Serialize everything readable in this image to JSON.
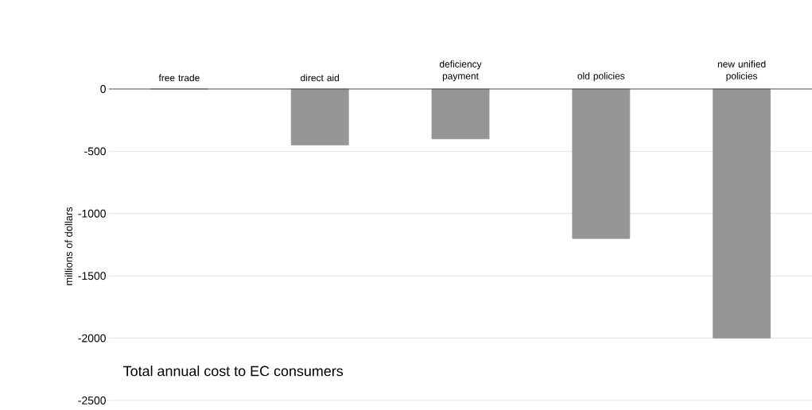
{
  "chart_data": {
    "type": "bar",
    "title": "Total annual cost to EC consumers",
    "ylabel": "millions of dollars",
    "categories": [
      "free trade",
      "direct aid",
      "deficiency payment",
      "old policies",
      "new unified policies"
    ],
    "values": [
      0,
      -450,
      -400,
      -1200,
      -2000
    ],
    "color": "#969696",
    "ylim": [
      -2500,
      0
    ],
    "yticks": [
      -2500,
      -2000,
      -1500,
      -1000,
      -500,
      0
    ],
    "grid": "y"
  }
}
